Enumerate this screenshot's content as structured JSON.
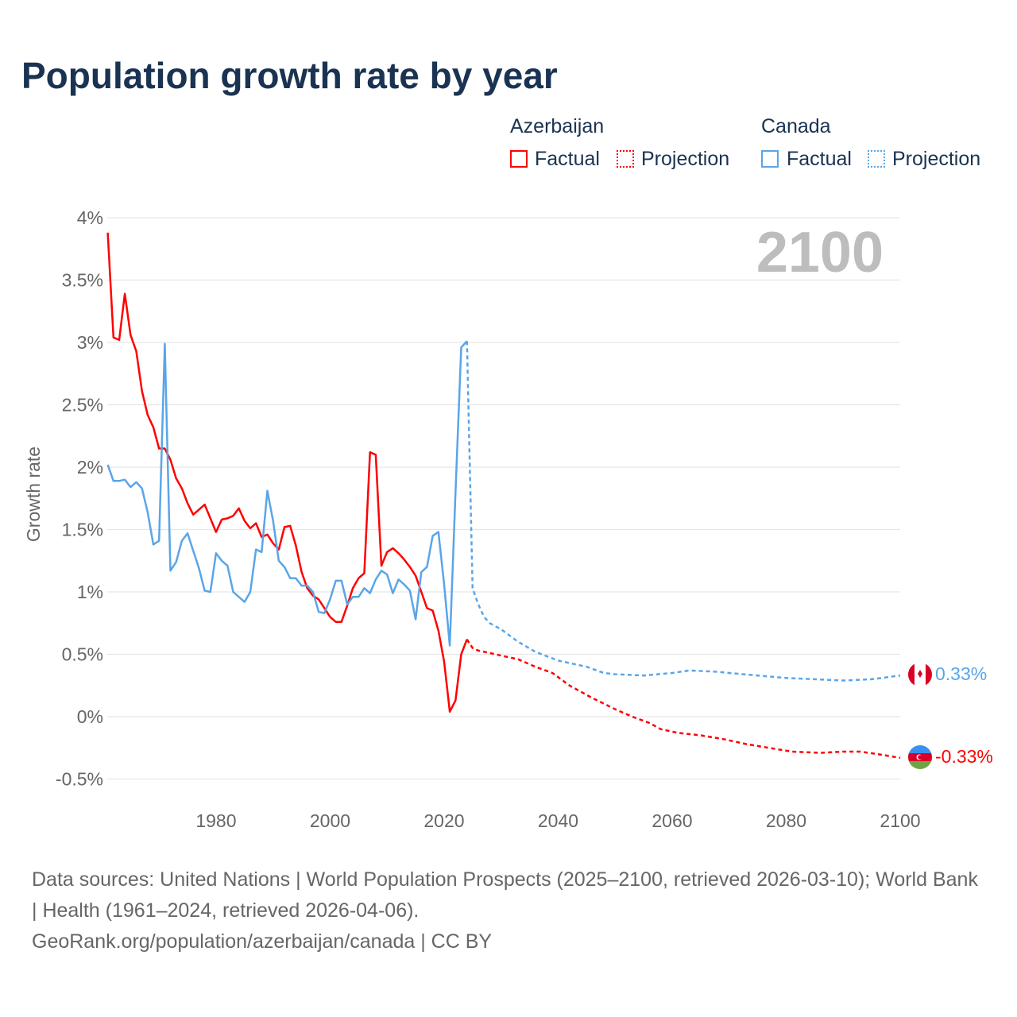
{
  "title": "Population growth rate by year",
  "legend": {
    "groups": [
      {
        "country": "Azerbaijan",
        "factual": "Factual",
        "projection": "Projection",
        "color": "#ff0000"
      },
      {
        "country": "Canada",
        "factual": "Factual",
        "projection": "Projection",
        "color": "#5aa5e8"
      }
    ]
  },
  "year_label": "2100",
  "end_labels": {
    "canada": "0.33%",
    "azerbaijan": "-0.33%"
  },
  "source_line1": "Data sources: United Nations | World Population Prospects (2025–2100, retrieved 2026-03-10); World Bank | Health (1961–2024, retrieved 2026-04-06).",
  "source_line2": "GeoRank.org/population/azerbaijan/canada | CC BY",
  "chart_data": {
    "type": "line",
    "title": "Population growth rate by year",
    "xlabel": "",
    "ylabel": "Growth rate",
    "xlim": [
      1961,
      2100
    ],
    "ylim": [
      -0.5,
      4
    ],
    "x_ticks": [
      1980,
      2000,
      2020,
      2040,
      2060,
      2080,
      2100
    ],
    "x_tick_labels": [
      "1980",
      "2000",
      "2020",
      "2040",
      "2060",
      "2080",
      "2100"
    ],
    "y_ticks": [
      -0.5,
      0,
      0.5,
      1,
      1.5,
      2,
      2.5,
      3,
      3.5,
      4
    ],
    "y_tick_labels": [
      "-0.5%",
      "0%",
      "0.5%",
      "1%",
      "1.5%",
      "2%",
      "2.5%",
      "3%",
      "3.5%",
      "4%"
    ],
    "grid": true,
    "legend_position": "top-right",
    "series": [
      {
        "name": "Azerbaijan Factual",
        "color": "#ff0000",
        "dashed": false,
        "x": [
          1961,
          1962,
          1963,
          1964,
          1965,
          1966,
          1967,
          1968,
          1969,
          1970,
          1971,
          1972,
          1973,
          1974,
          1975,
          1976,
          1977,
          1978,
          1979,
          1980,
          1981,
          1982,
          1983,
          1984,
          1985,
          1986,
          1987,
          1988,
          1989,
          1990,
          1991,
          1992,
          1993,
          1994,
          1995,
          1996,
          1997,
          1998,
          1999,
          2000,
          2001,
          2002,
          2003,
          2004,
          2005,
          2006,
          2007,
          2008,
          2009,
          2010,
          2011,
          2012,
          2013,
          2014,
          2015,
          2016,
          2017,
          2018,
          2019,
          2020,
          2021,
          2022,
          2023,
          2024
        ],
        "y": [
          3.88,
          3.04,
          3.02,
          3.39,
          3.06,
          2.93,
          2.61,
          2.42,
          2.32,
          2.15,
          2.15,
          2.06,
          1.91,
          1.83,
          1.71,
          1.62,
          1.66,
          1.7,
          1.59,
          1.48,
          1.58,
          1.59,
          1.61,
          1.67,
          1.57,
          1.51,
          1.55,
          1.44,
          1.46,
          1.39,
          1.34,
          1.52,
          1.53,
          1.37,
          1.16,
          1.03,
          0.97,
          0.94,
          0.87,
          0.8,
          0.76,
          0.76,
          0.89,
          1.03,
          1.11,
          1.15,
          2.12,
          2.1,
          1.21,
          1.32,
          1.35,
          1.31,
          1.26,
          1.2,
          1.13,
          1.0,
          0.87,
          0.85,
          0.69,
          0.44,
          0.04,
          0.13,
          0.5,
          0.62
        ]
      },
      {
        "name": "Azerbaijan Projection",
        "color": "#ff0000",
        "dashed": true,
        "x": [
          2024,
          2025,
          2026,
          2028,
          2030,
          2033,
          2036,
          2039,
          2042,
          2046,
          2050,
          2053,
          2056,
          2058,
          2061,
          2065,
          2069,
          2073,
          2077,
          2081,
          2086,
          2090,
          2093,
          2096,
          2100
        ],
        "y": [
          0.62,
          0.55,
          0.53,
          0.51,
          0.49,
          0.46,
          0.4,
          0.35,
          0.25,
          0.15,
          0.06,
          0.0,
          -0.05,
          -0.1,
          -0.13,
          -0.15,
          -0.18,
          -0.22,
          -0.25,
          -0.28,
          -0.29,
          -0.28,
          -0.28,
          -0.3,
          -0.33
        ]
      },
      {
        "name": "Canada Factual",
        "color": "#5aa5e8",
        "dashed": false,
        "x": [
          1961,
          1962,
          1963,
          1964,
          1965,
          1966,
          1967,
          1968,
          1969,
          1970,
          1971,
          1972,
          1973,
          1974,
          1975,
          1976,
          1977,
          1978,
          1979,
          1980,
          1981,
          1982,
          1983,
          1984,
          1985,
          1986,
          1987,
          1988,
          1989,
          1990,
          1991,
          1992,
          1993,
          1994,
          1995,
          1996,
          1997,
          1998,
          1999,
          2000,
          2001,
          2002,
          2003,
          2004,
          2005,
          2006,
          2007,
          2008,
          2009,
          2010,
          2011,
          2012,
          2013,
          2014,
          2015,
          2016,
          2017,
          2018,
          2019,
          2020,
          2021,
          2022,
          2023,
          2024
        ],
        "y": [
          2.02,
          1.89,
          1.89,
          1.9,
          1.84,
          1.88,
          1.83,
          1.64,
          1.38,
          1.41,
          2.99,
          1.17,
          1.24,
          1.41,
          1.47,
          1.33,
          1.19,
          1.01,
          1.0,
          1.31,
          1.25,
          1.21,
          1.0,
          0.96,
          0.92,
          1.0,
          1.34,
          1.32,
          1.81,
          1.57,
          1.25,
          1.2,
          1.11,
          1.11,
          1.05,
          1.05,
          1.0,
          0.84,
          0.83,
          0.94,
          1.09,
          1.09,
          0.9,
          0.96,
          0.96,
          1.03,
          0.99,
          1.1,
          1.17,
          1.14,
          0.99,
          1.1,
          1.06,
          1.01,
          0.78,
          1.16,
          1.2,
          1.45,
          1.48,
          1.06,
          0.57,
          1.8,
          2.96,
          3.01
        ]
      },
      {
        "name": "Canada Projection",
        "color": "#5aa5e8",
        "dashed": true,
        "x": [
          2024,
          2025,
          2026,
          2027,
          2028,
          2030,
          2033,
          2036,
          2040,
          2045,
          2048,
          2050,
          2055,
          2060,
          2063,
          2068,
          2070,
          2075,
          2080,
          2085,
          2090,
          2095,
          2100
        ],
        "y": [
          3.01,
          1.03,
          0.9,
          0.8,
          0.75,
          0.7,
          0.6,
          0.52,
          0.45,
          0.4,
          0.35,
          0.34,
          0.33,
          0.35,
          0.37,
          0.36,
          0.35,
          0.33,
          0.31,
          0.3,
          0.29,
          0.3,
          0.33
        ]
      }
    ]
  }
}
